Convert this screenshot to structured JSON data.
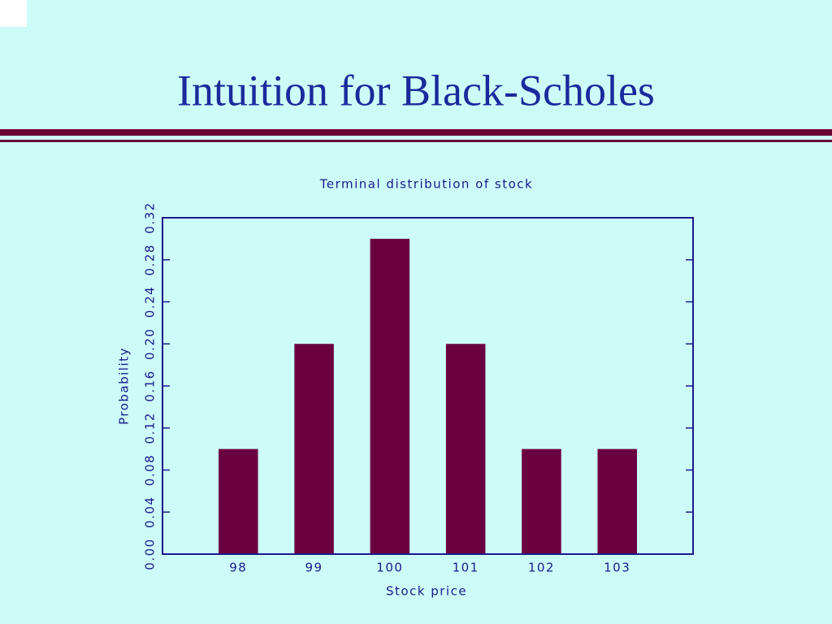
{
  "slide_title": "Intuition for Black-Scholes",
  "chart_data": {
    "type": "bar",
    "title": "Terminal distribution of stock",
    "x_label": "Stock price",
    "y_label": "Probability",
    "categories": [
      "98",
      "99",
      "100",
      "101",
      "102",
      "103"
    ],
    "values": [
      0.1,
      0.2,
      0.3,
      0.2,
      0.1,
      0.1
    ],
    "color": "#6b0040",
    "ylim": [
      0,
      0.32
    ],
    "yticks": [
      {
        "value": 0,
        "label": "0.00"
      },
      {
        "value": 0.04,
        "label": "0.04"
      },
      {
        "value": 0.08,
        "label": "0.08"
      },
      {
        "value": 0.12,
        "label": "0.12"
      },
      {
        "value": 0.16,
        "label": "0.16"
      },
      {
        "value": 0.2,
        "label": "0.20"
      },
      {
        "value": 0.24,
        "label": "0.24"
      },
      {
        "value": 0.28,
        "label": "0.28"
      },
      {
        "value": 0.32,
        "label": "0.32"
      }
    ],
    "grid": false
  }
}
